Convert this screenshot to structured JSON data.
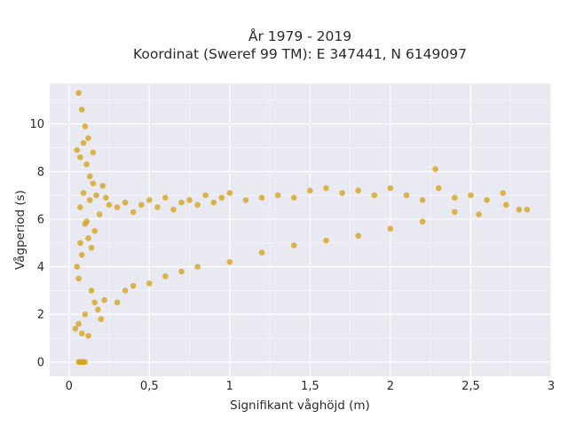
{
  "chart_data": {
    "type": "scatter",
    "title": "År 1979 - 2019",
    "subtitle": "Koordinat (Sweref 99 TM): E 347441, N 6149097",
    "xlabel": "Signifikant våghöjd (m)",
    "ylabel": "Vågperiod (s)",
    "xlim": [
      -0.12,
      3.0
    ],
    "ylim": [
      -0.6,
      11.7
    ],
    "x_ticks": [
      0,
      0.5,
      1,
      1.5,
      2,
      2.5,
      3
    ],
    "x_tick_labels": [
      "0",
      "0,5",
      "1",
      "1,5",
      "2",
      "2,5",
      "3"
    ],
    "y_ticks": [
      0,
      2,
      4,
      6,
      8,
      10
    ],
    "y_tick_labels": [
      "0",
      "2",
      "4",
      "6",
      "8",
      "10"
    ],
    "grid": true,
    "background_color": "#e9e9f1",
    "marker_color": "#d4a520",
    "points_x": [
      0.06,
      0.08,
      0.1,
      0.12,
      0.05,
      0.07,
      0.09,
      0.11,
      0.13,
      0.15,
      0.04,
      0.06,
      0.08,
      0.1,
      0.12,
      0.14,
      0.16,
      0.18,
      0.2,
      0.22,
      0.07,
      0.09,
      0.11,
      0.13,
      0.15,
      0.17,
      0.19,
      0.21,
      0.23,
      0.25,
      0.3,
      0.35,
      0.4,
      0.45,
      0.5,
      0.55,
      0.6,
      0.65,
      0.7,
      0.75,
      0.8,
      0.85,
      0.9,
      0.95,
      1.0,
      1.1,
      1.2,
      1.3,
      1.4,
      1.5,
      1.6,
      1.7,
      1.8,
      1.9,
      2.0,
      2.1,
      2.2,
      2.3,
      2.4,
      2.5,
      2.6,
      2.7,
      2.8,
      2.85,
      0.06,
      0.07,
      0.08,
      0.09,
      0.1,
      0.05,
      0.06,
      0.07,
      0.08,
      0.1,
      0.12,
      0.14,
      0.16,
      0.3,
      0.35,
      0.4,
      0.5,
      0.6,
      0.7,
      0.8,
      1.0,
      1.2,
      1.4,
      1.6,
      1.8,
      2.0,
      2.2,
      2.28,
      2.4,
      2.55,
      2.72
    ],
    "points_y": [
      11.3,
      10.6,
      9.9,
      9.4,
      8.9,
      8.6,
      9.2,
      8.3,
      7.8,
      8.8,
      1.4,
      1.6,
      1.2,
      2.0,
      1.1,
      3.0,
      2.5,
      2.2,
      1.8,
      2.6,
      6.5,
      7.1,
      5.9,
      6.8,
      7.5,
      7.0,
      6.2,
      7.4,
      6.9,
      6.6,
      6.5,
      6.7,
      6.3,
      6.6,
      6.8,
      6.5,
      6.9,
      6.4,
      6.7,
      6.8,
      6.6,
      7.0,
      6.7,
      6.9,
      7.1,
      6.8,
      6.9,
      7.0,
      6.9,
      7.2,
      7.3,
      7.1,
      7.2,
      7.0,
      7.3,
      7.0,
      6.8,
      7.3,
      6.9,
      7.0,
      6.8,
      7.1,
      6.4,
      6.4,
      0.0,
      0.0,
      0.0,
      0.0,
      0.0,
      4.0,
      3.5,
      5.0,
      4.5,
      5.8,
      5.2,
      4.8,
      5.5,
      2.5,
      3.0,
      3.2,
      3.3,
      3.6,
      3.8,
      4.0,
      4.2,
      4.6,
      4.9,
      5.1,
      5.3,
      5.6,
      5.9,
      8.1,
      6.3,
      6.2,
      6.6
    ]
  }
}
